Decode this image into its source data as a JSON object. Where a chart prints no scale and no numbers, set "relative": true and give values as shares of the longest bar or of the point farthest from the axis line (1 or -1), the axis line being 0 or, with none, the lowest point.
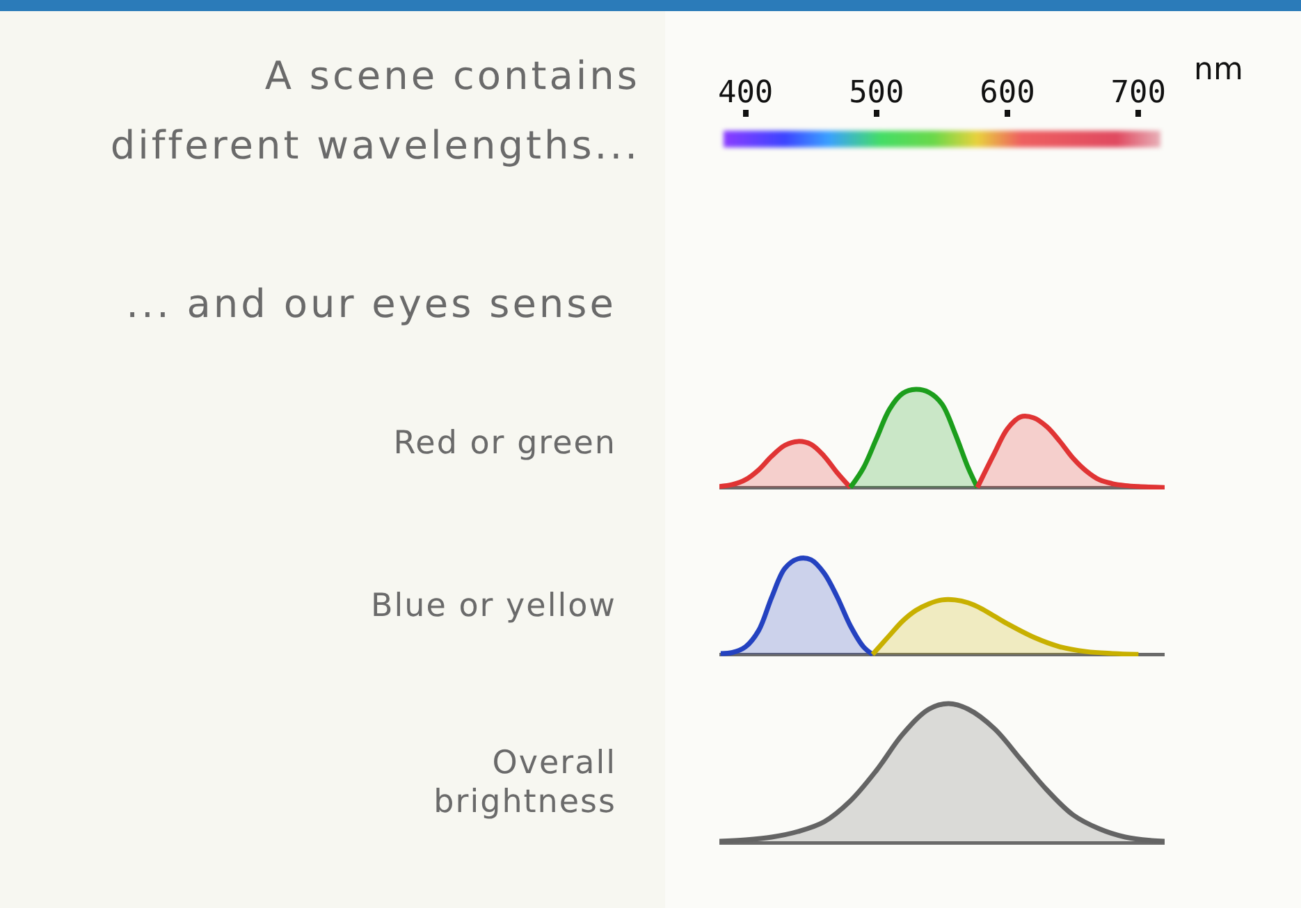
{
  "chart_data": [
    {
      "type": "area",
      "title": "A scene contains\ndifferent wavelengths...",
      "subtitle": "... and our eyes sense",
      "ylabel": "Red or green",
      "xlabel": "nm",
      "relative": true,
      "xlim": [
        380,
        720
      ],
      "xticks": [
        400,
        500,
        600,
        700
      ],
      "tick_labels": "x",
      "grid": false,
      "series": [
        {
          "color": "#e03434",
          "x": [
            380,
            390,
            400,
            410,
            420,
            430,
            440,
            450,
            460,
            470,
            480
          ],
          "values": [
            0.01,
            0.03,
            0.08,
            0.18,
            0.32,
            0.43,
            0.47,
            0.44,
            0.32,
            0.15,
            0
          ]
        },
        {
          "color": "#1c9e1c",
          "x": [
            480,
            490,
            500,
            510,
            520,
            530,
            540,
            550,
            560,
            570,
            577
          ],
          "values": [
            0,
            0.2,
            0.5,
            0.8,
            0.96,
            1,
            0.97,
            0.85,
            0.55,
            0.2,
            0
          ]
        },
        {
          "color": "#e03434",
          "x": [
            577,
            590,
            600,
            610,
            620,
            630,
            640,
            650,
            660,
            670,
            680,
            690,
            700,
            720
          ],
          "values": [
            0,
            0.35,
            0.6,
            0.72,
            0.71,
            0.62,
            0.47,
            0.3,
            0.17,
            0.08,
            0.04,
            0.02,
            0.01,
            0
          ]
        }
      ]
    },
    {
      "type": "area",
      "ylabel": "Blue or yellow",
      "relative": true,
      "xlim": [
        380,
        720
      ],
      "tick_labels": false,
      "grid": false,
      "series": [
        {
          "color": "#2442c0",
          "x": [
            381,
            390,
            400,
            410,
            420,
            430,
            440,
            450,
            460,
            470,
            480,
            490,
            497
          ],
          "values": [
            0.01,
            0.02,
            0.08,
            0.25,
            0.6,
            0.9,
            1,
            0.99,
            0.85,
            0.6,
            0.3,
            0.08,
            0
          ]
        },
        {
          "color": "#c8b000",
          "x": [
            497,
            510,
            520,
            530,
            540,
            550,
            560,
            570,
            580,
            590,
            600,
            620,
            640,
            660,
            680,
            700
          ],
          "values": [
            0,
            0.2,
            0.35,
            0.46,
            0.53,
            0.57,
            0.57,
            0.54,
            0.48,
            0.4,
            0.32,
            0.18,
            0.08,
            0.03,
            0.01,
            0
          ]
        }
      ]
    },
    {
      "type": "area",
      "ylabel": "Overall\nbrightness",
      "relative": true,
      "xlim": [
        380,
        720
      ],
      "tick_labels": false,
      "grid": false,
      "series": [
        {
          "color": "#646464",
          "x": [
            380,
            400,
            420,
            440,
            460,
            480,
            500,
            520,
            540,
            555,
            570,
            590,
            610,
            630,
            650,
            670,
            690,
            710,
            720
          ],
          "values": [
            0.01,
            0.02,
            0.04,
            0.08,
            0.15,
            0.3,
            0.52,
            0.78,
            0.96,
            1,
            0.96,
            0.82,
            0.6,
            0.38,
            0.2,
            0.1,
            0.04,
            0.015,
            0.01
          ]
        }
      ]
    }
  ]
}
